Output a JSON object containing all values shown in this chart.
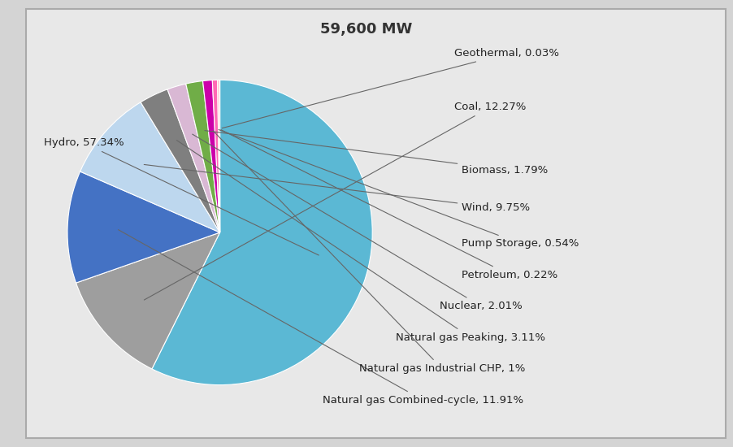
{
  "title": "59,600 MW",
  "slices": [
    {
      "label": "Hydro",
      "pct": 57.34,
      "color": "#5BB8D4"
    },
    {
      "label": "Coal",
      "pct": 12.27,
      "color": "#9E9E9E"
    },
    {
      "label": "Natural gas Combined-cycle",
      "pct": 11.91,
      "color": "#4472C4"
    },
    {
      "label": "Wind",
      "pct": 9.75,
      "color": "#BDD7EE"
    },
    {
      "label": "Natural gas Peaking",
      "pct": 3.11,
      "color": "#7F7F7F"
    },
    {
      "label": "Nuclear",
      "pct": 2.01,
      "color": "#D9B8D4"
    },
    {
      "label": "Biomass",
      "pct": 1.79,
      "color": "#70AD47"
    },
    {
      "label": "Natural gas Industrial CHP",
      "pct": 1.0,
      "color": "#CC00AA"
    },
    {
      "label": "Pump Storage",
      "pct": 0.54,
      "color": "#FF69B4"
    },
    {
      "label": "Petroleum",
      "pct": 0.22,
      "color": "#FFB6C1"
    },
    {
      "label": "Geothermal",
      "pct": 0.03,
      "color": "#A9D18E"
    }
  ],
  "background_color": "#D4D4D4",
  "panel_color": "#E8E8E8",
  "title_fontsize": 13,
  "label_fontsize": 9.5
}
